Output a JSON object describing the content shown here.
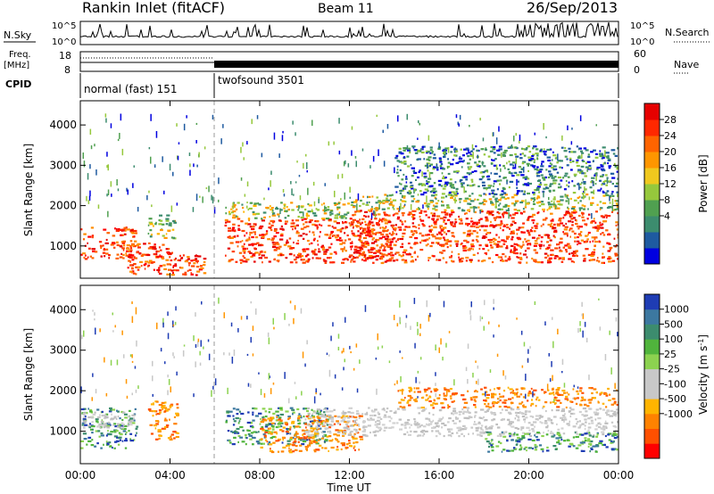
{
  "header": {
    "station": "Rankin Inlet (fitACF)",
    "beam": "Beam 11",
    "date": "26/Sep/2013"
  },
  "noise_panel": {
    "left_label": "N.Sky",
    "right_label": "N.Search",
    "left_ticks": [
      "10^5",
      "10^0"
    ],
    "right_ticks": [
      "10^5",
      "10^0"
    ]
  },
  "freq_panel": {
    "left_label_top": "Freq.",
    "left_label_unit": "[MHz]",
    "left_ticks": [
      "18",
      "8"
    ],
    "right_label": "Nave",
    "right_ticks": [
      "60",
      "0"
    ],
    "cpid_label": "CPID",
    "modes": [
      {
        "name": "normal (fast) 151",
        "start_hour": 0,
        "end_hour": 6
      },
      {
        "name": "twofsound 3501",
        "start_hour": 6,
        "end_hour": 24
      }
    ]
  },
  "power_colorbar": {
    "label": "Power [dB]",
    "ticks": [
      "28",
      "24",
      "20",
      "16",
      "12",
      "8",
      "4"
    ],
    "colors": [
      "#0000e0",
      "#1e5aa0",
      "#3c8c6e",
      "#50a050",
      "#96c83c",
      "#f0c81e",
      "#ff9600",
      "#ff6400",
      "#ff2800",
      "#e60000"
    ]
  },
  "velocity_colorbar": {
    "label": "Velocity [m s",
    "label_sup": "-1",
    "label_end": "]",
    "ticks": [
      "1000",
      "500",
      "100",
      "25",
      "-25",
      "-100",
      "-500",
      "-1000"
    ],
    "colors": [
      "#1e3cb4",
      "#3c78a0",
      "#3c8c6e",
      "#50b43c",
      "#8cd250",
      "#c8c8c8",
      "#c8c8c8",
      "#ffb400",
      "#ff8200",
      "#ff5000",
      "#ff0000"
    ]
  },
  "chart_data": [
    {
      "type": "heatmap",
      "name": "power",
      "xlabel": "Time UT",
      "ylabel": "Slant Range [km]",
      "xlim": [
        0,
        24
      ],
      "ylim": [
        200,
        4600
      ],
      "yticks": [
        1000,
        2000,
        3000,
        4000
      ],
      "xticks": [
        "00:00",
        "04:00",
        "08:00",
        "12:00",
        "16:00",
        "20:00",
        "00:00"
      ],
      "data_gap": [
        5.5,
        6.2
      ],
      "bands": [
        {
          "t0": 0.0,
          "t1": 2.5,
          "r0": 700,
          "r1": 1500,
          "level": "high"
        },
        {
          "t0": 2.0,
          "t1": 4.2,
          "r0": 300,
          "r1": 1100,
          "level": "high"
        },
        {
          "t0": 3.0,
          "t1": 4.2,
          "r0": 1200,
          "r1": 1800,
          "level": "medium"
        },
        {
          "t0": 4.0,
          "t1": 6.0,
          "r0": 300,
          "r1": 800,
          "level": "high"
        },
        {
          "t0": 6.4,
          "t1": 14.0,
          "r0": 600,
          "r1": 1700,
          "level": "high"
        },
        {
          "t0": 6.4,
          "t1": 12.0,
          "r0": 1700,
          "r1": 2100,
          "level": "medium"
        },
        {
          "t0": 12.0,
          "t1": 24.0,
          "r0": 600,
          "r1": 1900,
          "level": "high"
        },
        {
          "t0": 12.0,
          "t1": 24.0,
          "r0": 1900,
          "r1": 2300,
          "level": "medium"
        },
        {
          "t0": 14.0,
          "t1": 24.0,
          "r0": 2300,
          "r1": 3500,
          "level": "low"
        }
      ]
    },
    {
      "type": "heatmap",
      "name": "velocity",
      "xlabel": "Time UT",
      "ylabel": "Slant Range [km]",
      "xlim": [
        0,
        24
      ],
      "ylim": [
        200,
        4600
      ],
      "yticks": [
        1000,
        2000,
        3000,
        4000
      ],
      "xticks": [
        "00:00",
        "04:00",
        "08:00",
        "12:00",
        "16:00",
        "20:00",
        "00:00"
      ],
      "data_gap": [
        5.5,
        6.2
      ],
      "bands": [
        {
          "t0": 0.0,
          "t1": 2.5,
          "r0": 600,
          "r1": 1600,
          "level": "toward"
        },
        {
          "t0": 0.0,
          "t1": 2.5,
          "r0": 1100,
          "r1": 1500,
          "level": "ground"
        },
        {
          "t0": 3.0,
          "t1": 4.3,
          "r0": 800,
          "r1": 1800,
          "level": "away"
        },
        {
          "t0": 6.4,
          "t1": 11.0,
          "r0": 700,
          "r1": 1600,
          "level": "toward"
        },
        {
          "t0": 8.0,
          "t1": 12.5,
          "r0": 500,
          "r1": 1400,
          "level": "away"
        },
        {
          "t0": 10.0,
          "t1": 24.0,
          "r0": 900,
          "r1": 1600,
          "level": "ground"
        },
        {
          "t0": 14.0,
          "t1": 24.0,
          "r0": 1600,
          "r1": 2100,
          "level": "away"
        },
        {
          "t0": 18.0,
          "t1": 24.0,
          "r0": 500,
          "r1": 1000,
          "level": "toward"
        }
      ]
    }
  ]
}
